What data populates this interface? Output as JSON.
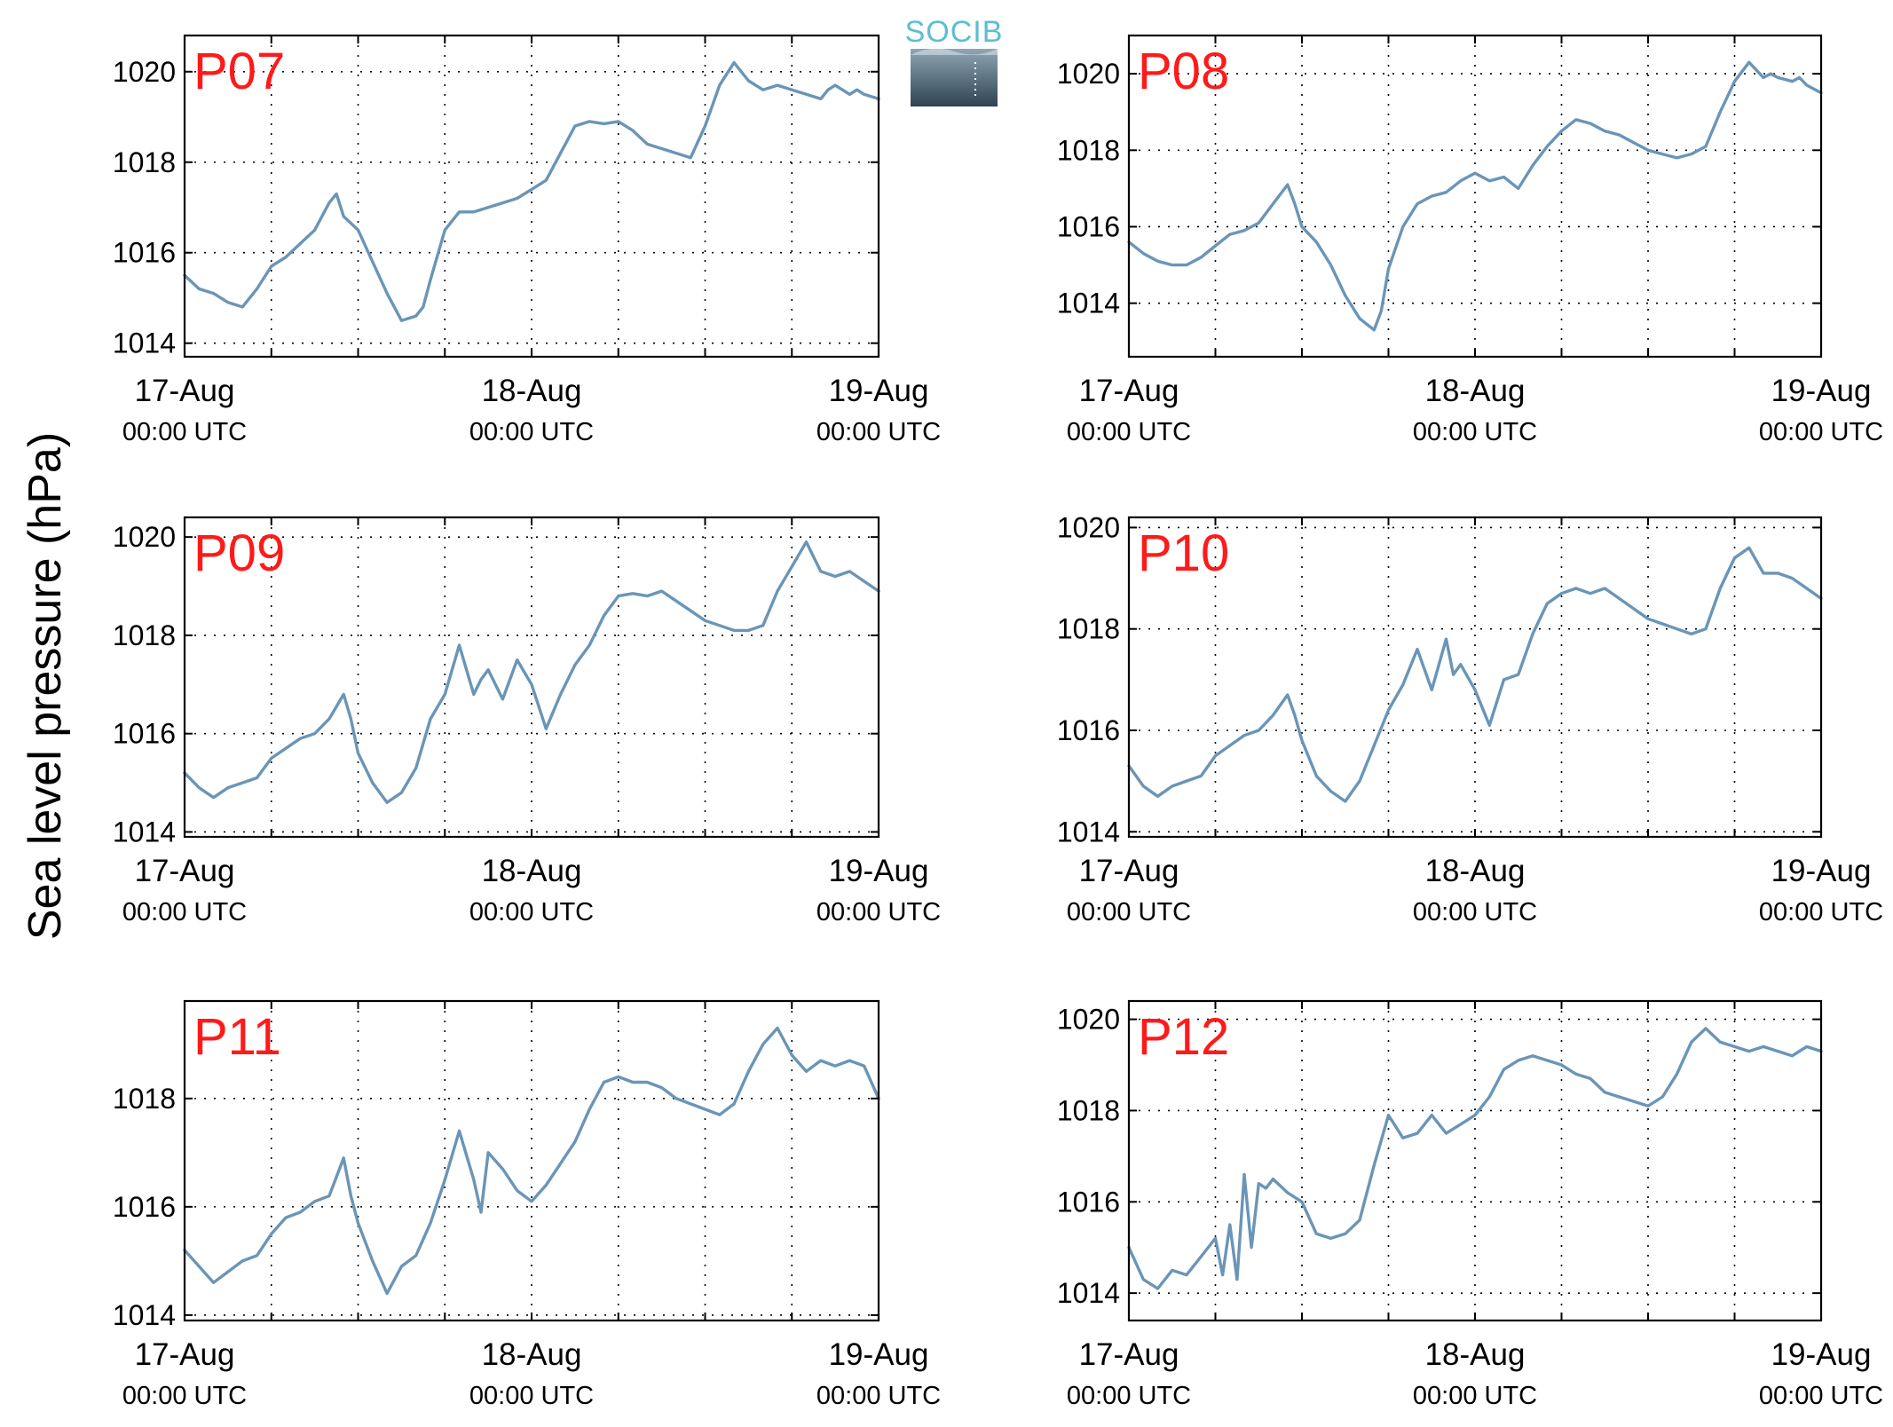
{
  "figure": {
    "ylabel": "Sea level pressure (hPa)",
    "logo_text": "SOCIB"
  },
  "colors": {
    "series": "#6a95b7",
    "panel_label": "#ff1a1a",
    "logo_text": "#5bbfd0",
    "logo_top": "#8fa6b4",
    "logo_bottom": "#2f4352"
  },
  "chart_data": [
    {
      "type": "line",
      "panel_label": "P07",
      "xlabel": "",
      "ylabel": "Sea level pressure (hPa)",
      "xlim": [
        0,
        48
      ],
      "ylim": [
        1013.7,
        1020.8
      ],
      "yticks": [
        1014,
        1016,
        1018,
        1020
      ],
      "xticks": [
        {
          "x": 0,
          "date": "17-Aug",
          "time": "00:00 UTC"
        },
        {
          "x": 24,
          "date": "18-Aug",
          "time": "00:00 UTC"
        },
        {
          "x": 48,
          "date": "19-Aug",
          "time": "00:00 UTC"
        }
      ],
      "grid": true,
      "series": [
        {
          "x": [
            0,
            1,
            2,
            3,
            4,
            5,
            6,
            7,
            8,
            9,
            10,
            10.5,
            11,
            12,
            13,
            14,
            15,
            16,
            16.5,
            17,
            18,
            19,
            20,
            21,
            22,
            23,
            24,
            25,
            26,
            27,
            28,
            29,
            30,
            31,
            32,
            33,
            34,
            35,
            36,
            37,
            38,
            39,
            40,
            41,
            42,
            43,
            44,
            44.5,
            45,
            46,
            46.5,
            47,
            48
          ],
          "y": [
            1015.5,
            1015.2,
            1015.1,
            1014.9,
            1014.8,
            1015.2,
            1015.7,
            1015.9,
            1016.2,
            1016.5,
            1017.1,
            1017.3,
            1016.8,
            1016.5,
            1015.8,
            1015.1,
            1014.5,
            1014.6,
            1014.8,
            1015.4,
            1016.5,
            1016.9,
            1016.9,
            1017.0,
            1017.1,
            1017.2,
            1017.4,
            1017.6,
            1018.2,
            1018.8,
            1018.9,
            1018.85,
            1018.9,
            1018.7,
            1018.4,
            1018.3,
            1018.2,
            1018.1,
            1018.8,
            1019.7,
            1020.2,
            1019.8,
            1019.6,
            1019.7,
            1019.6,
            1019.5,
            1019.4,
            1019.6,
            1019.7,
            1019.5,
            1019.6,
            1019.5,
            1019.4
          ]
        }
      ]
    },
    {
      "type": "line",
      "panel_label": "P08",
      "xlabel": "",
      "ylabel": "Sea level pressure (hPa)",
      "xlim": [
        0,
        48
      ],
      "ylim": [
        1012.6,
        1021.0
      ],
      "yticks": [
        1014,
        1016,
        1018,
        1020
      ],
      "xticks": [
        {
          "x": 0,
          "date": "17-Aug",
          "time": "00:00 UTC"
        },
        {
          "x": 24,
          "date": "18-Aug",
          "time": "00:00 UTC"
        },
        {
          "x": 48,
          "date": "19-Aug",
          "time": "00:00 UTC"
        }
      ],
      "grid": true,
      "series": [
        {
          "x": [
            0,
            1,
            2,
            3,
            4,
            5,
            6,
            7,
            8,
            9,
            10,
            11,
            11.5,
            12,
            13,
            14,
            15,
            16,
            17,
            17.5,
            18,
            19,
            20,
            21,
            22,
            23,
            24,
            25,
            26,
            27,
            28,
            29,
            30,
            31,
            32,
            33,
            34,
            35,
            36,
            37,
            38,
            39,
            40,
            41,
            42,
            43,
            44,
            44.5,
            45,
            46,
            46.5,
            47,
            48
          ],
          "y": [
            1015.6,
            1015.3,
            1015.1,
            1015.0,
            1015.0,
            1015.2,
            1015.5,
            1015.8,
            1015.9,
            1016.1,
            1016.6,
            1017.1,
            1016.6,
            1016.0,
            1015.6,
            1015.0,
            1014.2,
            1013.6,
            1013.3,
            1013.8,
            1014.9,
            1016.0,
            1016.6,
            1016.8,
            1016.9,
            1017.2,
            1017.4,
            1017.2,
            1017.3,
            1017.0,
            1017.6,
            1018.1,
            1018.5,
            1018.8,
            1018.7,
            1018.5,
            1018.4,
            1018.2,
            1018.0,
            1017.9,
            1017.8,
            1017.9,
            1018.1,
            1019.0,
            1019.8,
            1020.3,
            1019.9,
            1020.0,
            1019.9,
            1019.8,
            1019.9,
            1019.7,
            1019.5
          ]
        }
      ]
    },
    {
      "type": "line",
      "panel_label": "P09",
      "xlabel": "",
      "ylabel": "Sea level pressure (hPa)",
      "xlim": [
        0,
        48
      ],
      "ylim": [
        1013.9,
        1020.4
      ],
      "yticks": [
        1014,
        1016,
        1018,
        1020
      ],
      "xticks": [
        {
          "x": 0,
          "date": "17-Aug",
          "time": "00:00 UTC"
        },
        {
          "x": 24,
          "date": "18-Aug",
          "time": "00:00 UTC"
        },
        {
          "x": 48,
          "date": "19-Aug",
          "time": "00:00 UTC"
        }
      ],
      "grid": true,
      "series": [
        {
          "x": [
            0,
            1,
            2,
            3,
            4,
            5,
            6,
            7,
            8,
            9,
            10,
            11,
            11.5,
            12,
            13,
            14,
            15,
            16,
            17,
            18,
            19,
            20,
            20.5,
            21,
            22,
            23,
            24,
            25,
            26,
            27,
            28,
            29,
            30,
            31,
            32,
            33,
            34,
            35,
            36,
            37,
            38,
            39,
            40,
            41,
            42,
            43,
            44,
            45,
            46,
            47,
            48
          ],
          "y": [
            1015.2,
            1014.9,
            1014.7,
            1014.9,
            1015.0,
            1015.1,
            1015.5,
            1015.7,
            1015.9,
            1016.0,
            1016.3,
            1016.8,
            1016.3,
            1015.6,
            1015.0,
            1014.6,
            1014.8,
            1015.3,
            1016.3,
            1016.8,
            1017.8,
            1016.8,
            1017.1,
            1017.3,
            1016.7,
            1017.5,
            1017.0,
            1016.1,
            1016.8,
            1017.4,
            1017.8,
            1018.4,
            1018.8,
            1018.85,
            1018.8,
            1018.9,
            1018.7,
            1018.5,
            1018.3,
            1018.2,
            1018.1,
            1018.1,
            1018.2,
            1018.9,
            1019.4,
            1019.9,
            1019.3,
            1019.2,
            1019.3,
            1019.1,
            1018.9
          ]
        }
      ]
    },
    {
      "type": "line",
      "panel_label": "P10",
      "xlabel": "",
      "ylabel": "Sea level pressure (hPa)",
      "xlim": [
        0,
        48
      ],
      "ylim": [
        1013.9,
        1020.2
      ],
      "yticks": [
        1014,
        1016,
        1018,
        1020
      ],
      "xticks": [
        {
          "x": 0,
          "date": "17-Aug",
          "time": "00:00 UTC"
        },
        {
          "x": 24,
          "date": "18-Aug",
          "time": "00:00 UTC"
        },
        {
          "x": 48,
          "date": "19-Aug",
          "time": "00:00 UTC"
        }
      ],
      "grid": true,
      "series": [
        {
          "x": [
            0,
            1,
            2,
            3,
            4,
            5,
            6,
            7,
            8,
            9,
            10,
            11,
            11.5,
            12,
            13,
            14,
            15,
            16,
            17,
            18,
            19,
            20,
            21,
            22,
            22.5,
            23,
            24,
            25,
            26,
            27,
            28,
            29,
            30,
            31,
            32,
            33,
            34,
            35,
            36,
            37,
            38,
            39,
            40,
            41,
            42,
            43,
            44,
            45,
            46,
            47,
            48
          ],
          "y": [
            1015.3,
            1014.9,
            1014.7,
            1014.9,
            1015.0,
            1015.1,
            1015.5,
            1015.7,
            1015.9,
            1016.0,
            1016.3,
            1016.7,
            1016.3,
            1015.8,
            1015.1,
            1014.8,
            1014.6,
            1015.0,
            1015.7,
            1016.4,
            1016.9,
            1017.6,
            1016.8,
            1017.8,
            1017.1,
            1017.3,
            1016.8,
            1016.1,
            1017.0,
            1017.1,
            1017.9,
            1018.5,
            1018.7,
            1018.8,
            1018.7,
            1018.8,
            1018.6,
            1018.4,
            1018.2,
            1018.1,
            1018.0,
            1017.9,
            1018.0,
            1018.8,
            1019.4,
            1019.6,
            1019.1,
            1019.1,
            1019.0,
            1018.8,
            1018.6
          ]
        }
      ]
    },
    {
      "type": "line",
      "panel_label": "P11",
      "xlabel": "",
      "ylabel": "Sea level pressure (hPa)",
      "xlim": [
        0,
        48
      ],
      "ylim": [
        1013.9,
        1019.8
      ],
      "yticks": [
        1014,
        1016,
        1018
      ],
      "xticks": [
        {
          "x": 0,
          "date": "17-Aug",
          "time": "00:00 UTC"
        },
        {
          "x": 24,
          "date": "18-Aug",
          "time": "00:00 UTC"
        },
        {
          "x": 48,
          "date": "19-Aug",
          "time": "00:00 UTC"
        }
      ],
      "grid": true,
      "series": [
        {
          "x": [
            0,
            1,
            2,
            3,
            4,
            5,
            6,
            7,
            8,
            9,
            10,
            11,
            11.5,
            12,
            13,
            14,
            15,
            16,
            17,
            18,
            19,
            20,
            20.5,
            21,
            22,
            23,
            24,
            25,
            26,
            27,
            28,
            29,
            30,
            31,
            32,
            33,
            34,
            35,
            36,
            37,
            38,
            39,
            40,
            41,
            42,
            43,
            44,
            45,
            46,
            47,
            48
          ],
          "y": [
            1015.2,
            1014.9,
            1014.6,
            1014.8,
            1015.0,
            1015.1,
            1015.5,
            1015.8,
            1015.9,
            1016.1,
            1016.2,
            1016.9,
            1016.2,
            1015.7,
            1015.0,
            1014.4,
            1014.9,
            1015.1,
            1015.7,
            1016.5,
            1017.4,
            1016.5,
            1015.9,
            1017.0,
            1016.7,
            1016.3,
            1016.1,
            1016.4,
            1016.8,
            1017.2,
            1017.8,
            1018.3,
            1018.4,
            1018.3,
            1018.3,
            1018.2,
            1018.0,
            1017.9,
            1017.8,
            1017.7,
            1017.9,
            1018.5,
            1019.0,
            1019.3,
            1018.8,
            1018.5,
            1018.7,
            1018.6,
            1018.7,
            1018.6,
            1018.0
          ]
        }
      ]
    },
    {
      "type": "line",
      "panel_label": "P12",
      "xlabel": "",
      "ylabel": "Sea level pressure (hPa)",
      "xlim": [
        0,
        48
      ],
      "ylim": [
        1013.4,
        1020.4
      ],
      "yticks": [
        1014,
        1016,
        1018,
        1020
      ],
      "xticks": [
        {
          "x": 0,
          "date": "17-Aug",
          "time": "00:00 UTC"
        },
        {
          "x": 24,
          "date": "18-Aug",
          "time": "00:00 UTC"
        },
        {
          "x": 48,
          "date": "19-Aug",
          "time": "00:00 UTC"
        }
      ],
      "grid": true,
      "series": [
        {
          "x": [
            0,
            1,
            2,
            3,
            4,
            5,
            6,
            6.5,
            7,
            7.5,
            8,
            8.5,
            9,
            9.5,
            10,
            11,
            12,
            13,
            14,
            15,
            16,
            17,
            18,
            19,
            20,
            21,
            22,
            23,
            24,
            25,
            26,
            27,
            28,
            29,
            30,
            31,
            32,
            33,
            34,
            35,
            36,
            37,
            38,
            39,
            40,
            41,
            42,
            43,
            44,
            45,
            46,
            47,
            48
          ],
          "y": [
            1015.0,
            1014.3,
            1014.1,
            1014.5,
            1014.4,
            1014.8,
            1015.2,
            1014.4,
            1015.5,
            1014.3,
            1016.6,
            1015.0,
            1016.4,
            1016.3,
            1016.5,
            1016.2,
            1016.0,
            1015.3,
            1015.2,
            1015.3,
            1015.6,
            1016.8,
            1017.9,
            1017.4,
            1017.5,
            1017.9,
            1017.5,
            1017.7,
            1017.9,
            1018.3,
            1018.9,
            1019.1,
            1019.2,
            1019.1,
            1019.0,
            1018.8,
            1018.7,
            1018.4,
            1018.3,
            1018.2,
            1018.1,
            1018.3,
            1018.8,
            1019.5,
            1019.8,
            1019.5,
            1019.4,
            1019.3,
            1019.4,
            1019.3,
            1019.2,
            1019.4,
            1019.3
          ]
        }
      ]
    }
  ]
}
